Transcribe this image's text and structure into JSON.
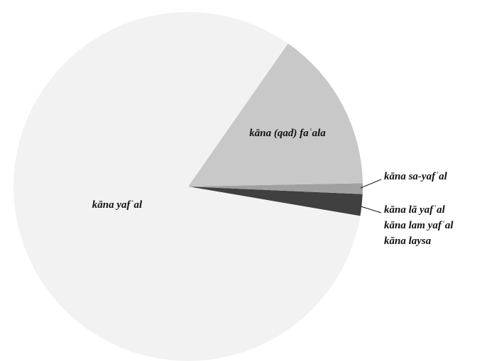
{
  "chart_data": {
    "type": "pie",
    "categories": [
      "kāna lā yafʿal\nkāna lam yafʿal\nkāna laysa",
      "kāna sa-yafʿal",
      "kāna (qad) faʿala",
      "kāna yafʿal"
    ],
    "values": [
      2,
      1,
      15,
      82
    ],
    "colors": [
      "#404040",
      "#a0a0a0",
      "#c8c8c8",
      "#f2f2f2"
    ]
  }
}
